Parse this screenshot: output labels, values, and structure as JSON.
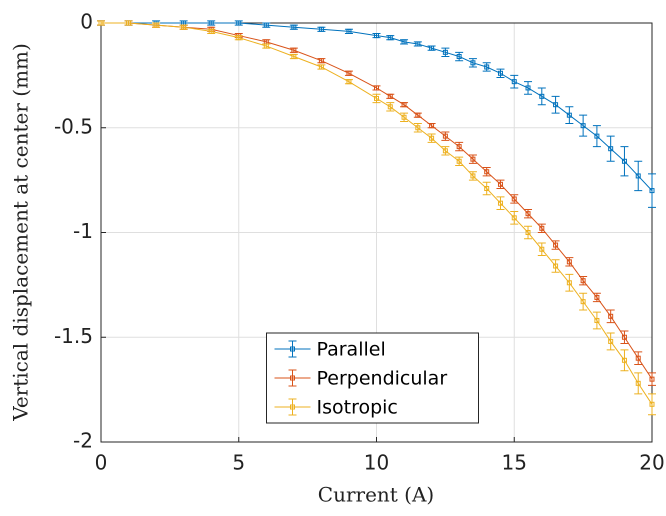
{
  "chart_data": {
    "type": "errorbar-line",
    "xlabel": "Current (A)",
    "ylabel": "Vertical displacement at center (mm)",
    "x": [
      0,
      1,
      2,
      3,
      4,
      5,
      6,
      7,
      8,
      9,
      10,
      10.5,
      11,
      11.5,
      12,
      12.5,
      13,
      13.5,
      14,
      14.5,
      15,
      15.5,
      16,
      16.5,
      17,
      17.5,
      18,
      18.5,
      19,
      19.5,
      20
    ],
    "series": [
      {
        "name": "Parallel",
        "color": "#0072bd",
        "values": [
          0,
          0,
          0,
          0,
          0,
          0,
          -0.01,
          -0.02,
          -0.03,
          -0.04,
          -0.06,
          -0.07,
          -0.09,
          -0.1,
          -0.12,
          -0.14,
          -0.16,
          -0.19,
          -0.21,
          -0.24,
          -0.28,
          -0.31,
          -0.35,
          -0.39,
          -0.44,
          -0.49,
          -0.54,
          -0.6,
          -0.66,
          -0.73,
          -0.8
        ],
        "errors": [
          0.01,
          0.01,
          0.01,
          0.01,
          0.01,
          0.01,
          0.01,
          0.01,
          0.01,
          0.01,
          0.01,
          0.01,
          0.01,
          0.01,
          0.01,
          0.02,
          0.02,
          0.02,
          0.02,
          0.02,
          0.03,
          0.03,
          0.04,
          0.04,
          0.04,
          0.05,
          0.05,
          0.06,
          0.07,
          0.07,
          0.08
        ]
      },
      {
        "name": "Perpendicular",
        "color": "#d95319",
        "values": [
          0,
          0,
          -0.01,
          -0.02,
          -0.03,
          -0.06,
          -0.09,
          -0.13,
          -0.18,
          -0.24,
          -0.31,
          -0.35,
          -0.39,
          -0.44,
          -0.49,
          -0.54,
          -0.59,
          -0.65,
          -0.71,
          -0.77,
          -0.84,
          -0.91,
          -0.98,
          -1.06,
          -1.14,
          -1.23,
          -1.31,
          -1.4,
          -1.5,
          -1.6,
          -1.7
        ],
        "errors": [
          0.01,
          0.01,
          0.01,
          0.01,
          0.01,
          0.01,
          0.01,
          0.01,
          0.01,
          0.01,
          0.01,
          0.01,
          0.01,
          0.01,
          0.01,
          0.02,
          0.02,
          0.02,
          0.02,
          0.02,
          0.02,
          0.02,
          0.02,
          0.02,
          0.02,
          0.02,
          0.02,
          0.03,
          0.03,
          0.03,
          0.03
        ]
      },
      {
        "name": "Isotropic",
        "color": "#edb120",
        "values": [
          0,
          0,
          -0.01,
          -0.02,
          -0.04,
          -0.07,
          -0.11,
          -0.16,
          -0.21,
          -0.28,
          -0.36,
          -0.4,
          -0.45,
          -0.5,
          -0.55,
          -0.61,
          -0.66,
          -0.73,
          -0.79,
          -0.86,
          -0.93,
          -1.0,
          -1.08,
          -1.16,
          -1.24,
          -1.33,
          -1.42,
          -1.52,
          -1.61,
          -1.72,
          -1.82
        ],
        "errors": [
          0.01,
          0.01,
          0.01,
          0.01,
          0.01,
          0.01,
          0.01,
          0.01,
          0.01,
          0.01,
          0.02,
          0.02,
          0.02,
          0.02,
          0.02,
          0.02,
          0.02,
          0.02,
          0.03,
          0.03,
          0.03,
          0.03,
          0.03,
          0.03,
          0.04,
          0.04,
          0.04,
          0.04,
          0.05,
          0.05,
          0.05
        ]
      }
    ],
    "xlim": [
      0,
      20
    ],
    "xticks": [
      0,
      5,
      10,
      15,
      20
    ],
    "ylim": [
      -2,
      0
    ],
    "yticks": [
      -2,
      -1.5,
      -1,
      -0.5,
      0
    ],
    "grid": true,
    "legend": "south"
  }
}
